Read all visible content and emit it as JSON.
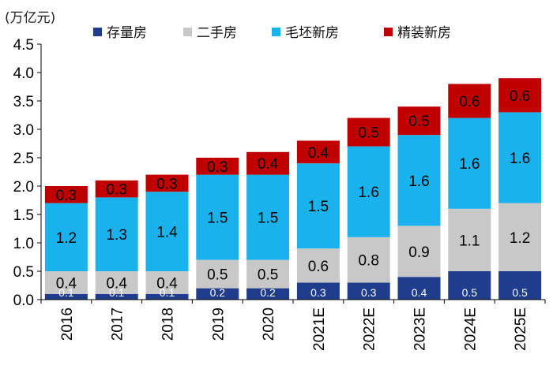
{
  "chart_data": {
    "type": "bar",
    "stacked": true,
    "unit_label": "(万亿元)",
    "categories": [
      "2016",
      "2017",
      "2018",
      "2019",
      "2020",
      "2021E",
      "2022E",
      "2023E",
      "2024E",
      "2025E"
    ],
    "series": [
      {
        "name": "存量房",
        "color": "#1f3d8c",
        "values": [
          0.1,
          0.1,
          0.1,
          0.2,
          0.2,
          0.3,
          0.3,
          0.4,
          0.5,
          0.5
        ],
        "labels": [
          "0.1",
          "0.1",
          "0.1",
          "0.2",
          "0.2",
          "0.3",
          "0.3",
          "0.4",
          "0.5",
          "0.5"
        ]
      },
      {
        "name": "二手房",
        "color": "#c8c8c8",
        "values": [
          0.4,
          0.4,
          0.4,
          0.5,
          0.5,
          0.6,
          0.8,
          0.9,
          1.1,
          1.2
        ],
        "labels": [
          "0.4",
          "0.4",
          "0.4",
          "0.5",
          "0.5",
          "0.6",
          "0.8",
          "0.9",
          "1.1",
          "1.2"
        ]
      },
      {
        "name": "毛坯新房",
        "color": "#1ab2ec",
        "values": [
          1.2,
          1.3,
          1.4,
          1.5,
          1.5,
          1.5,
          1.6,
          1.6,
          1.6,
          1.6
        ],
        "labels": [
          "1.2",
          "1.3",
          "1.4",
          "1.5",
          "1.5",
          "1.5",
          "1.6",
          "1.6",
          "1.6",
          "1.6"
        ]
      },
      {
        "name": "精装新房",
        "color": "#c00000",
        "values": [
          0.3,
          0.3,
          0.3,
          0.3,
          0.4,
          0.4,
          0.5,
          0.5,
          0.6,
          0.6
        ],
        "labels": [
          "0.3",
          "0.3",
          "0.3",
          "0.3",
          "0.4",
          "0.4",
          "0.5",
          "0.5",
          "0.6",
          "0.6"
        ]
      }
    ],
    "ylim": [
      0,
      4.5
    ],
    "yticks": [
      "0.0",
      "0.5",
      "1.0",
      "1.5",
      "2.0",
      "2.5",
      "3.0",
      "3.5",
      "4.0",
      "4.5"
    ],
    "grid": false,
    "legend": "top"
  }
}
